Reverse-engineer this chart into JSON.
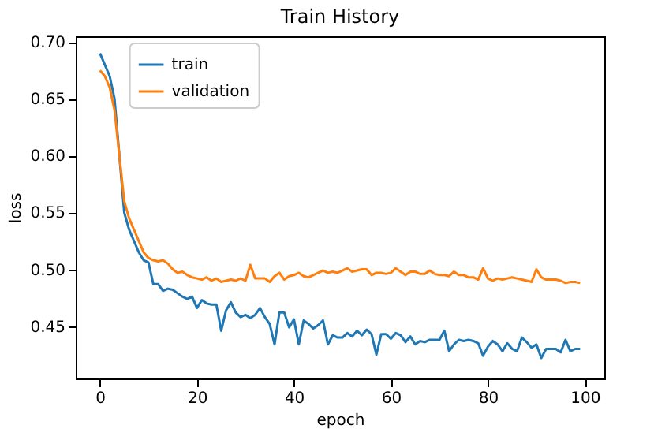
{
  "chart_data": {
    "type": "line",
    "title": "Train History",
    "xlabel": "epoch",
    "ylabel": "loss",
    "x": [
      0,
      1,
      2,
      3,
      4,
      5,
      6,
      7,
      8,
      9,
      10,
      11,
      12,
      13,
      14,
      15,
      16,
      17,
      18,
      19,
      20,
      21,
      22,
      23,
      24,
      25,
      26,
      27,
      28,
      29,
      30,
      31,
      32,
      33,
      34,
      35,
      36,
      37,
      38,
      39,
      40,
      41,
      42,
      43,
      44,
      45,
      46,
      47,
      48,
      49,
      50,
      51,
      52,
      53,
      54,
      55,
      56,
      57,
      58,
      59,
      60,
      61,
      62,
      63,
      64,
      65,
      66,
      67,
      68,
      69,
      70,
      71,
      72,
      73,
      74,
      75,
      76,
      77,
      78,
      79,
      80,
      81,
      82,
      83,
      84,
      85,
      86,
      87,
      88,
      89,
      90,
      91,
      92,
      93,
      94,
      95,
      96,
      97,
      98,
      99
    ],
    "series": [
      {
        "name": "train",
        "color": "#1f77b4",
        "values": [
          0.69,
          0.68,
          0.67,
          0.65,
          0.6,
          0.55,
          0.535,
          0.525,
          0.515,
          0.508,
          0.506,
          0.487,
          0.487,
          0.481,
          0.483,
          0.482,
          0.479,
          0.476,
          0.474,
          0.476,
          0.466,
          0.473,
          0.47,
          0.469,
          0.469,
          0.446,
          0.464,
          0.471,
          0.462,
          0.458,
          0.46,
          0.457,
          0.46,
          0.466,
          0.458,
          0.452,
          0.434,
          0.462,
          0.462,
          0.449,
          0.456,
          0.434,
          0.455,
          0.452,
          0.448,
          0.451,
          0.455,
          0.434,
          0.442,
          0.44,
          0.44,
          0.444,
          0.441,
          0.446,
          0.442,
          0.447,
          0.443,
          0.425,
          0.443,
          0.443,
          0.439,
          0.444,
          0.442,
          0.436,
          0.441,
          0.434,
          0.437,
          0.436,
          0.438,
          0.438,
          0.438,
          0.446,
          0.428,
          0.434,
          0.438,
          0.437,
          0.438,
          0.437,
          0.435,
          0.424,
          0.432,
          0.437,
          0.434,
          0.428,
          0.435,
          0.43,
          0.428,
          0.44,
          0.436,
          0.431,
          0.434,
          0.422,
          0.43,
          0.43,
          0.43,
          0.427,
          0.438,
          0.428,
          0.43,
          0.43
        ]
      },
      {
        "name": "validation",
        "color": "#ff7f0e",
        "values": [
          0.675,
          0.67,
          0.66,
          0.64,
          0.6,
          0.56,
          0.545,
          0.535,
          0.525,
          0.515,
          0.51,
          0.508,
          0.507,
          0.508,
          0.505,
          0.5,
          0.497,
          0.498,
          0.495,
          0.493,
          0.492,
          0.491,
          0.493,
          0.49,
          0.492,
          0.489,
          0.49,
          0.491,
          0.49,
          0.492,
          0.49,
          0.504,
          0.492,
          0.492,
          0.492,
          0.489,
          0.494,
          0.497,
          0.491,
          0.494,
          0.495,
          0.497,
          0.494,
          0.493,
          0.495,
          0.497,
          0.499,
          0.497,
          0.498,
          0.497,
          0.499,
          0.501,
          0.498,
          0.499,
          0.5,
          0.5,
          0.495,
          0.497,
          0.497,
          0.496,
          0.497,
          0.501,
          0.498,
          0.495,
          0.498,
          0.498,
          0.496,
          0.496,
          0.499,
          0.496,
          0.495,
          0.495,
          0.494,
          0.498,
          0.495,
          0.495,
          0.493,
          0.493,
          0.491,
          0.501,
          0.492,
          0.49,
          0.492,
          0.491,
          0.492,
          0.493,
          0.492,
          0.491,
          0.49,
          0.489,
          0.5,
          0.493,
          0.491,
          0.491,
          0.491,
          0.49,
          0.488,
          0.489,
          0.489,
          0.488
        ]
      }
    ],
    "xlim": [
      -5,
      104
    ],
    "xticks": [
      0,
      20,
      40,
      60,
      80,
      100
    ],
    "ylim": [
      0.404,
      0.705
    ],
    "yticks": [
      0.45,
      {
        "value": 0.5,
        "label": "0.50"
      },
      0.55,
      {
        "value": 0.6,
        "label": "0.60"
      },
      0.65,
      {
        "value": 0.7,
        "label": "0.70"
      }
    ],
    "grid": false,
    "legend": "top left"
  }
}
